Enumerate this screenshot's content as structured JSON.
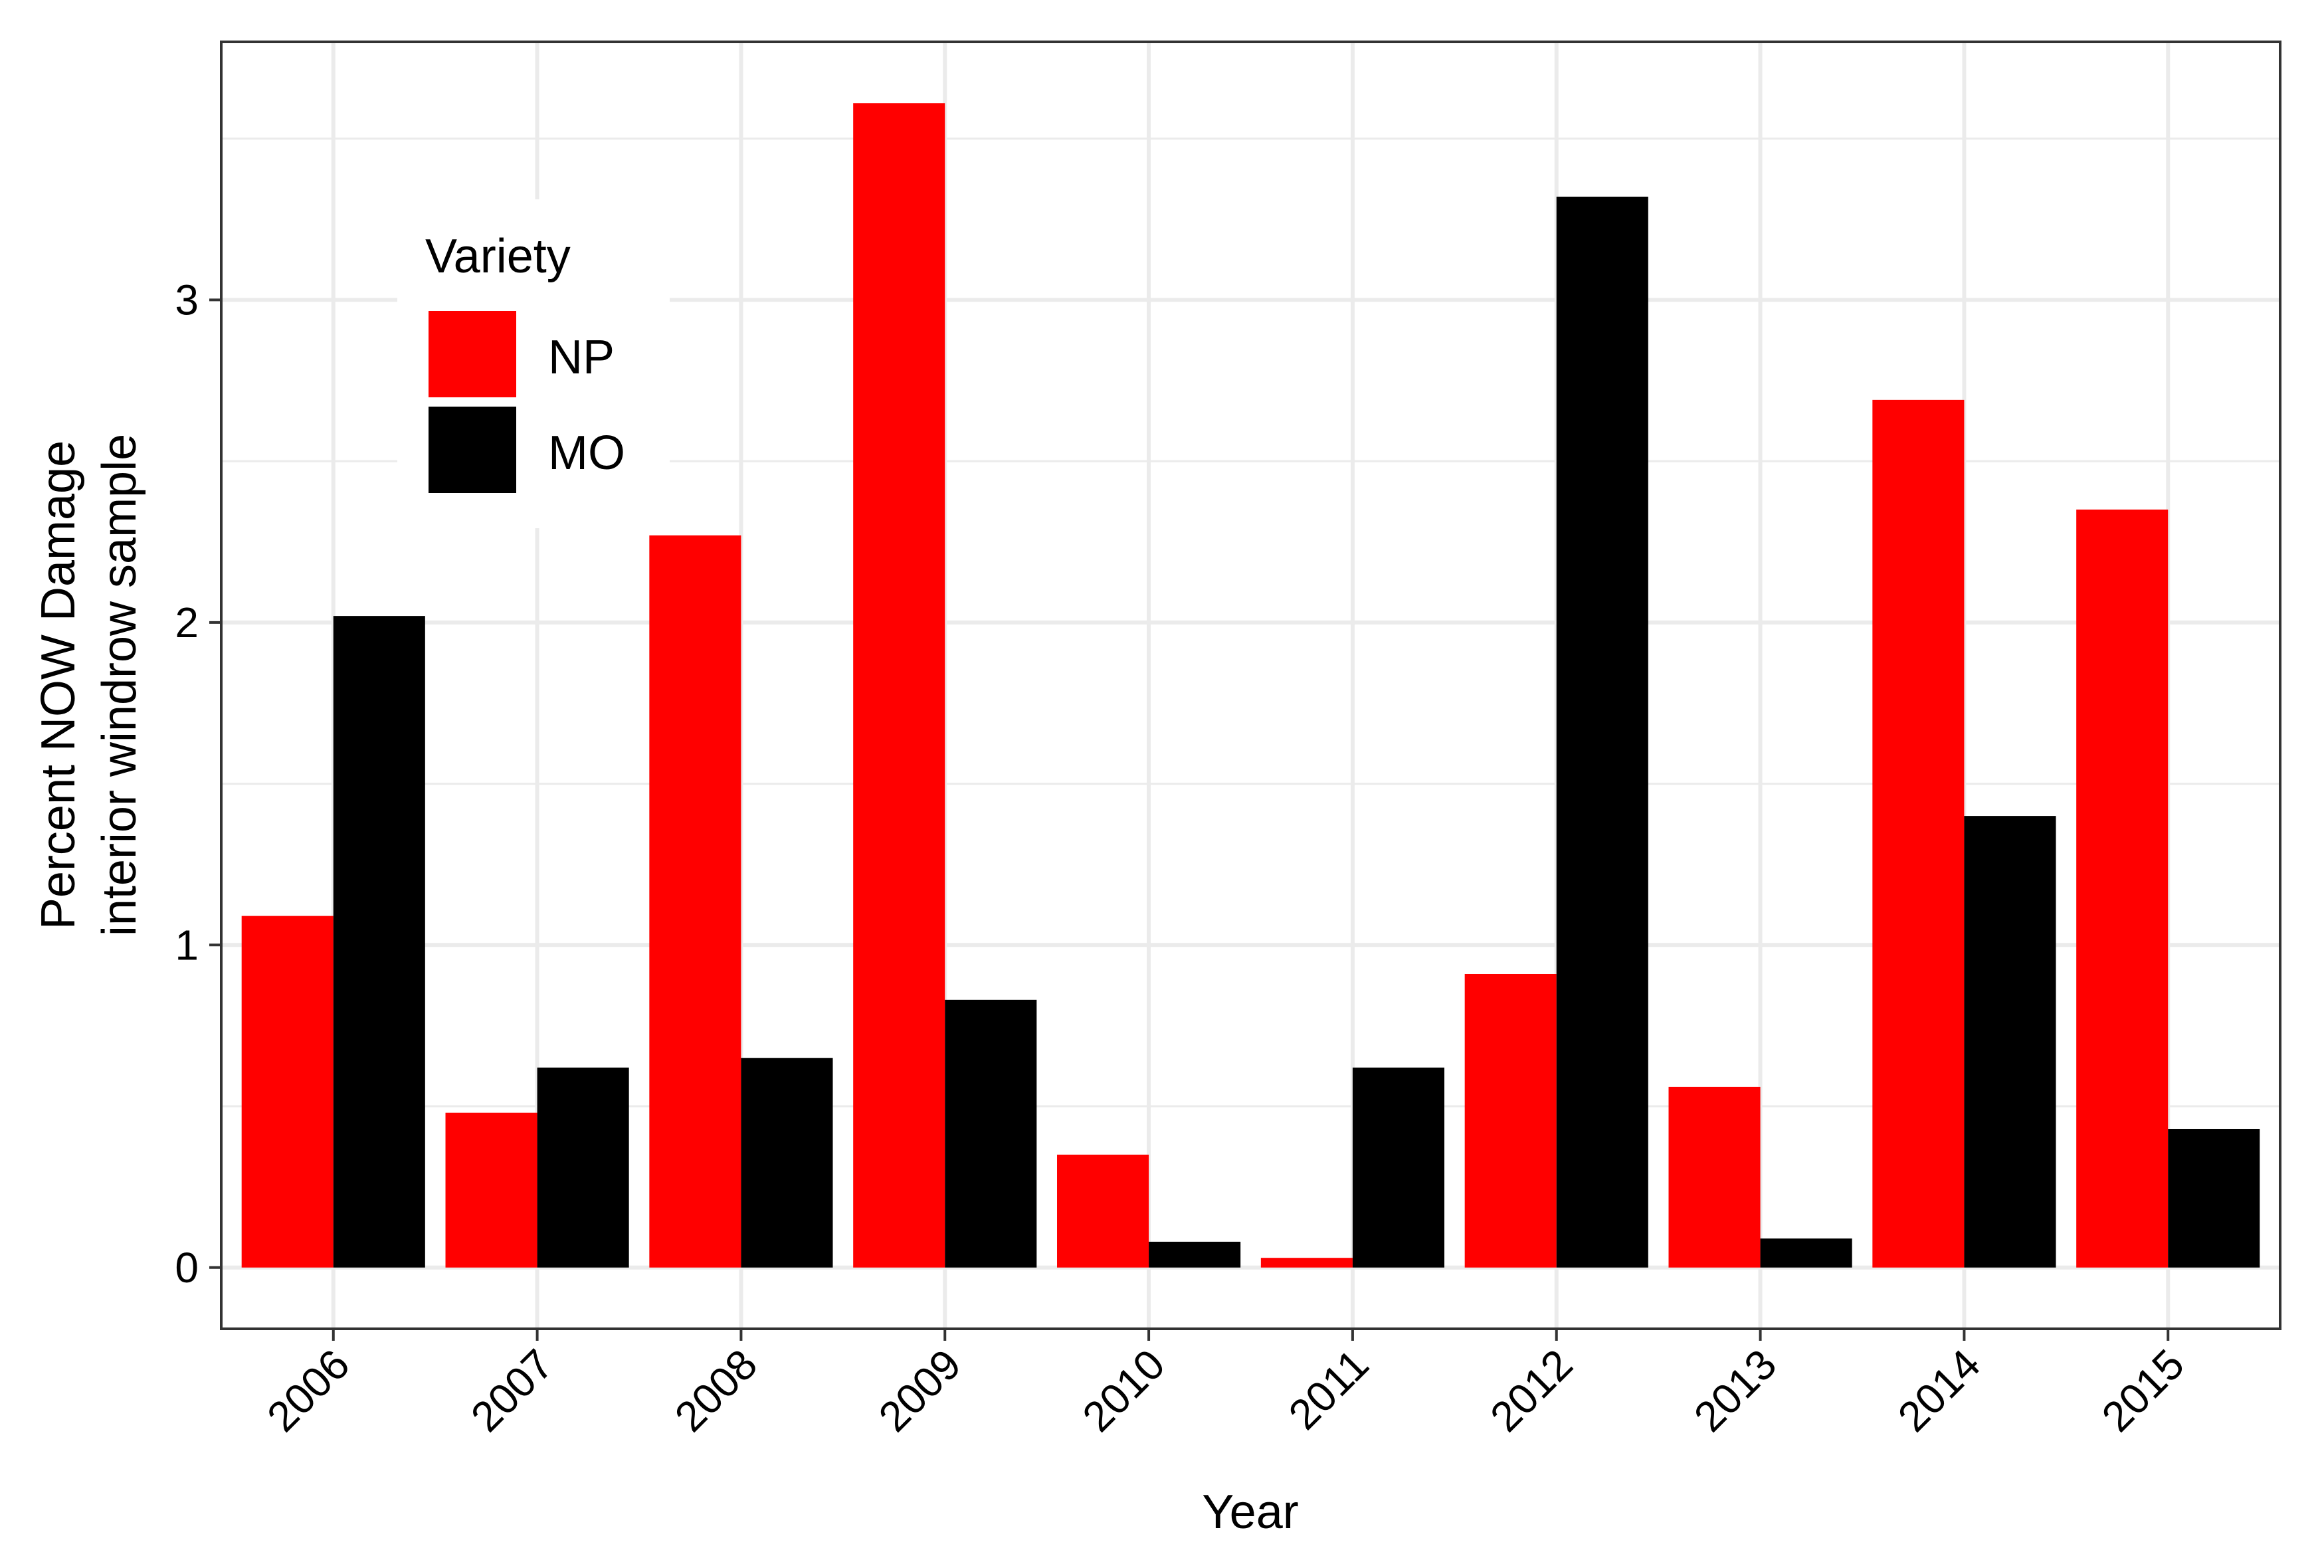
{
  "chart_data": {
    "type": "bar",
    "categories": [
      "2006",
      "2007",
      "2008",
      "2009",
      "2010",
      "2011",
      "2012",
      "2013",
      "2014",
      "2015"
    ],
    "series": [
      {
        "name": "NP",
        "color": "#ff0000",
        "values": [
          1.09,
          0.48,
          2.27,
          3.61,
          0.35,
          0.03,
          0.91,
          0.56,
          2.69,
          2.35
        ]
      },
      {
        "name": "MO",
        "color": "#000000",
        "values": [
          2.02,
          0.62,
          0.65,
          0.83,
          0.08,
          0.62,
          3.32,
          0.09,
          1.4,
          0.43
        ]
      }
    ],
    "xlabel": "Year",
    "ylabel_lines": [
      "Percent NOW Damage",
      "interior windrow sample"
    ],
    "ylim": [
      -0.19,
      3.8
    ],
    "yticks": [
      0,
      1,
      2,
      3
    ],
    "grid": true,
    "legend": {
      "title": "Variety",
      "position": "top-left inside"
    }
  }
}
